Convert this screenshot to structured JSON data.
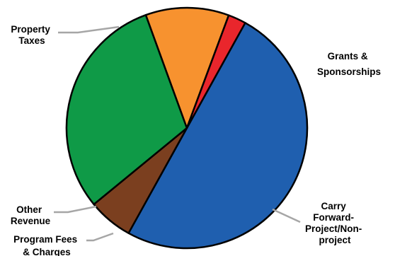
{
  "chart_data": {
    "type": "pie",
    "title": "",
    "start_angle_deg": 61,
    "direction": "clockwise",
    "slices": [
      {
        "label_lines": [
          "Property",
          "Taxes"
        ],
        "value": 50.0,
        "color": "#1f5faf"
      },
      {
        "label_lines": [
          "Grants &",
          "Sponsorships"
        ],
        "value": 6.0,
        "color": "#7b3f1f"
      },
      {
        "label_lines": [
          "Carry",
          "Forward-",
          "Project/Non-",
          "project"
        ],
        "value": 30.4,
        "color": "#0f9a47"
      },
      {
        "label_lines": [
          "Program Fees",
          "& Charges"
        ],
        "value": 11.2,
        "color": "#f7922f"
      },
      {
        "label_lines": [
          "Other",
          "Revenue"
        ],
        "value": 2.4,
        "color": "#e9262c"
      }
    ],
    "legend": "none"
  }
}
